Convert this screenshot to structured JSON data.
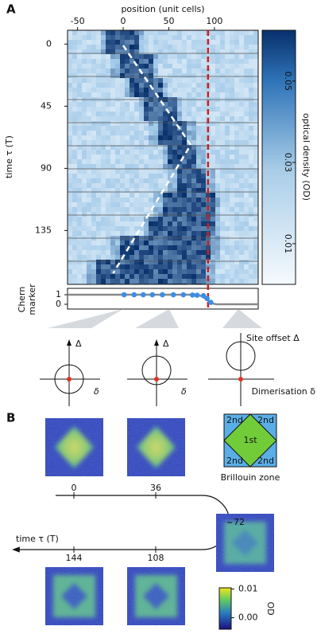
{
  "panel_a": {
    "label": "A",
    "heatmap": {
      "type": "heatmap",
      "xlabel": "position (unit cells)",
      "ylabel": "time τ (T)",
      "xlim": [
        -61,
        148
      ],
      "xticks": [
        -50,
        0,
        50,
        100
      ],
      "ylim": [
        -10,
        174
      ],
      "yticks": [
        0,
        45,
        90,
        135
      ],
      "edge_position": 93,
      "pump_path": {
        "x": [
          0,
          74,
          -11
        ],
        "y": [
          1,
          73,
          166
        ]
      },
      "colorbar": {
        "label": "optical density (OD)",
        "lim": [
          0,
          0.0625
        ],
        "ticks": [
          0.01,
          0.03,
          0.05
        ]
      }
    },
    "chern": {
      "type": "scatter",
      "ylabel": [
        "Chern",
        "marker"
      ],
      "ylim": [
        -0.5,
        1.67
      ],
      "yticks": [
        0,
        1
      ],
      "color": "#3a8ee6",
      "x": [
        1,
        12,
        22,
        32,
        43,
        55,
        66,
        76,
        81,
        88,
        92,
        96
      ],
      "values": [
        1,
        1,
        1,
        1,
        1,
        1,
        1,
        0.97,
        0.95,
        0.9,
        0.6,
        0.2
      ]
    },
    "diagrams": [
      {
        "y_label": "Δ",
        "x_label": "δ"
      },
      {
        "y_label": "Δ",
        "x_label": "δ"
      },
      {
        "y_label": "Site offset Δ",
        "x_label": "Dimerisation δ"
      }
    ]
  },
  "panel_b": {
    "label": "B",
    "snapshot_times": [
      0,
      36,
      72,
      108,
      144
    ],
    "time_label": "time τ (T)",
    "brillouin": {
      "first": "1st",
      "second": [
        "2nd",
        "2nd",
        "2nd",
        "2nd"
      ],
      "caption": "Brillouin zone"
    },
    "colorbar": {
      "label": "OD",
      "lim": [
        -0.004,
        0.0104
      ],
      "ticks": [
        {
          "value": 0.01,
          "label": "0.01"
        },
        {
          "value": 0,
          "label": "0.00"
        }
      ]
    }
  }
}
